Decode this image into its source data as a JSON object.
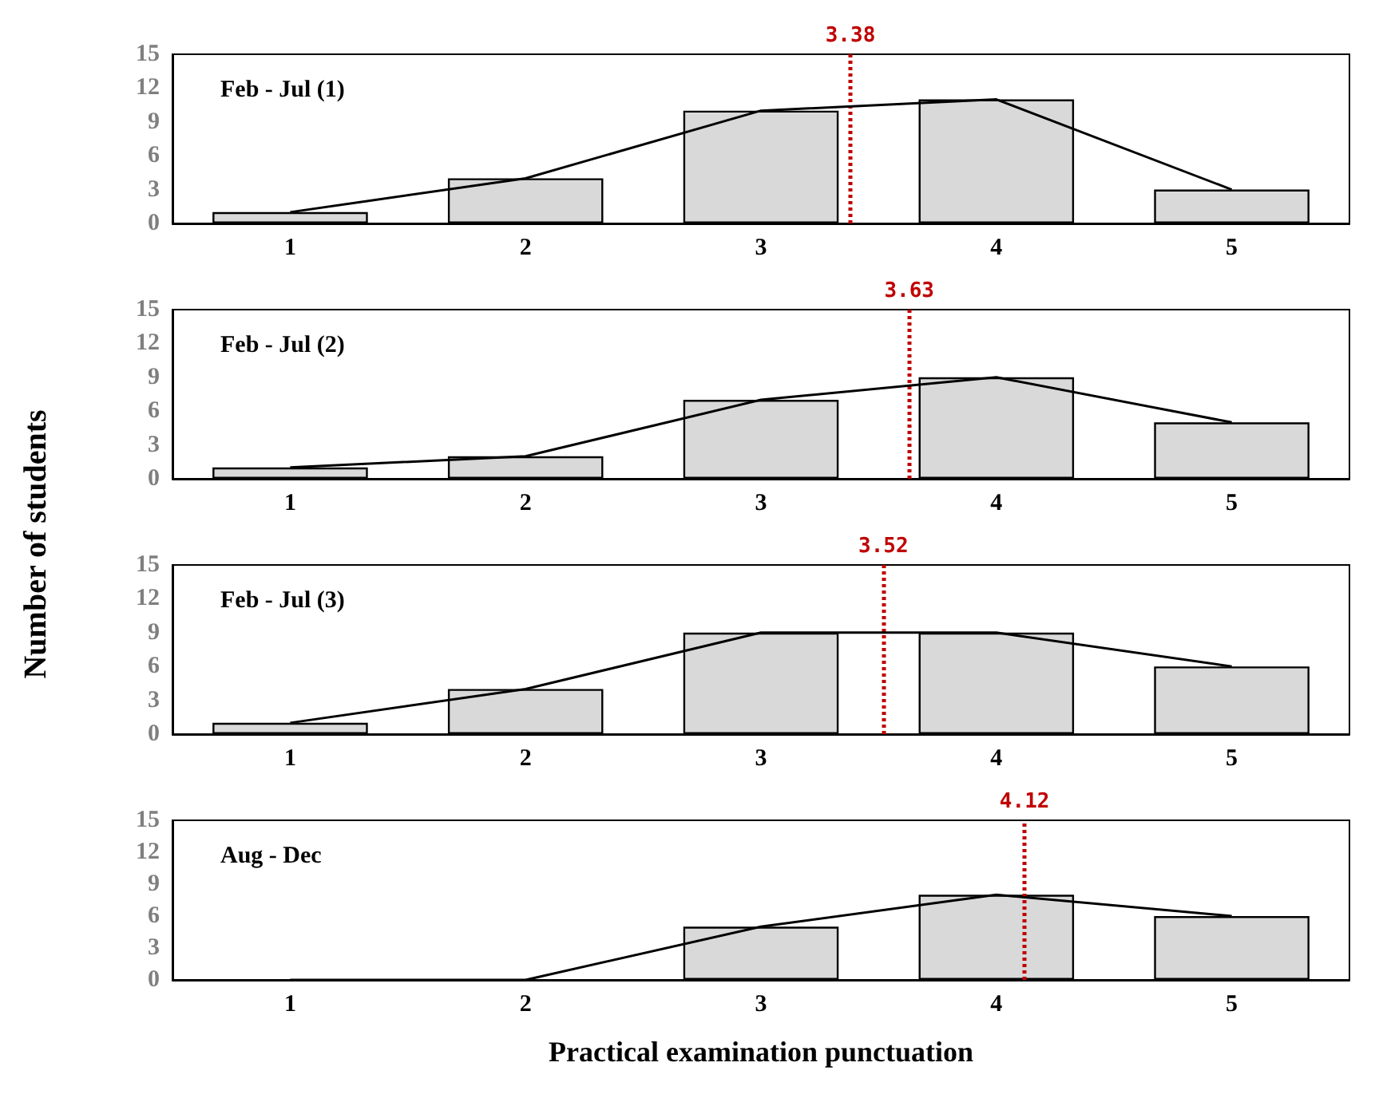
{
  "chart_data": [
    {
      "type": "bar",
      "title": "Feb - Jul (1)",
      "ylabel": "Number of students",
      "x": [
        1,
        2,
        3,
        4,
        5
      ],
      "xlim": [
        0.5,
        5.5
      ],
      "xticks": [
        1,
        2,
        3,
        4,
        5
      ],
      "ylim": [
        0,
        15
      ],
      "yticks": [
        0,
        3,
        6,
        9,
        12,
        15
      ],
      "grid": false,
      "marker": "none",
      "series": [
        {
          "color": "#d9d9d9",
          "values": [
            1,
            4,
            10,
            11,
            3
          ]
        },
        {
          "type": "line",
          "color": "#000000",
          "values": [
            1,
            4,
            10,
            11,
            3
          ]
        }
      ],
      "ref_lines": [
        {
          "axis": "x",
          "value": 3.38,
          "label": "3.38",
          "color": "#c00000",
          "line_style": "dotted"
        }
      ]
    },
    {
      "type": "bar",
      "title": "Feb - Jul (2)",
      "x": [
        1,
        2,
        3,
        4,
        5
      ],
      "xlim": [
        0.5,
        5.5
      ],
      "xticks": [
        1,
        2,
        3,
        4,
        5
      ],
      "ylim": [
        0,
        15
      ],
      "yticks": [
        0,
        3,
        6,
        9,
        12,
        15
      ],
      "grid": false,
      "marker": "none",
      "series": [
        {
          "color": "#d9d9d9",
          "values": [
            1,
            2,
            7,
            9,
            5
          ]
        },
        {
          "type": "line",
          "color": "#000000",
          "values": [
            1,
            2,
            7,
            9,
            5
          ]
        }
      ],
      "ref_lines": [
        {
          "axis": "x",
          "value": 3.63,
          "label": "3.63",
          "color": "#c00000",
          "line_style": "dotted"
        }
      ]
    },
    {
      "type": "bar",
      "title": "Feb - Jul (3)",
      "x": [
        1,
        2,
        3,
        4,
        5
      ],
      "xlim": [
        0.5,
        5.5
      ],
      "xticks": [
        1,
        2,
        3,
        4,
        5
      ],
      "ylim": [
        0,
        15
      ],
      "yticks": [
        0,
        3,
        6,
        9,
        12,
        15
      ],
      "grid": false,
      "marker": "none",
      "series": [
        {
          "color": "#d9d9d9",
          "values": [
            1,
            4,
            9,
            9,
            6
          ]
        },
        {
          "type": "line",
          "color": "#000000",
          "values": [
            1,
            4,
            9,
            9,
            6
          ]
        }
      ],
      "ref_lines": [
        {
          "axis": "x",
          "value": 3.52,
          "label": "3.52",
          "color": "#c00000",
          "line_style": "dotted"
        }
      ]
    },
    {
      "type": "bar",
      "title": "Aug - Dec",
      "xlabel": "Practical examination punctuation",
      "x": [
        1,
        2,
        3,
        4,
        5
      ],
      "xlim": [
        0.5,
        5.5
      ],
      "xticks": [
        1,
        2,
        3,
        4,
        5
      ],
      "ylim": [
        0,
        15
      ],
      "yticks": [
        0,
        3,
        6,
        9,
        12,
        15
      ],
      "grid": false,
      "marker": "none",
      "series": [
        {
          "color": "#d9d9d9",
          "values": [
            0,
            0,
            5,
            8,
            6
          ]
        },
        {
          "type": "line",
          "color": "#000000",
          "values": [
            0,
            0,
            5,
            8,
            6
          ]
        }
      ],
      "ref_lines": [
        {
          "axis": "x",
          "value": 4.12,
          "label": "4.12",
          "color": "#c00000",
          "line_style": "dotted"
        }
      ]
    }
  ]
}
